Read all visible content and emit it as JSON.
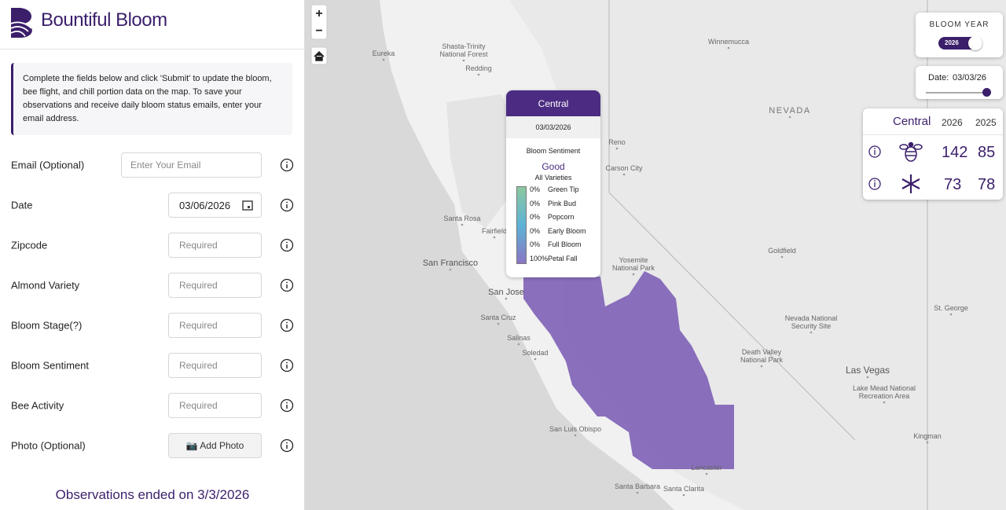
{
  "header": {
    "logo": "Bountiful Bloom"
  },
  "instructions": "Complete the fields below and click 'Submit' to update the bloom, bee flight, and chill portion data on the map. To save your observations and receive daily bloom status emails, enter your email address.",
  "form": {
    "fields": [
      {
        "label": "Email (Optional)",
        "placeholder": "Enter Your Email"
      },
      {
        "label": "Date",
        "value": "03/06/2026"
      },
      {
        "label": "Zipcode",
        "placeholder": "Required"
      },
      {
        "label": "Almond Variety",
        "placeholder": "Required"
      },
      {
        "label": "Bloom Stage(?)",
        "placeholder": "Required"
      },
      {
        "label": "Bloom Sentiment",
        "placeholder": "Required"
      },
      {
        "label": "Bee Activity",
        "placeholder": "Required"
      },
      {
        "label": "Photo (Optional)",
        "button": "📷 Add Photo"
      }
    ]
  },
  "footer": "Observations ended on 3/3/2026",
  "map": {
    "zoom_in": "+",
    "zoom_out": "−",
    "labels": [
      "Eureka",
      "Shasta-Trinity\nNational Forest",
      "Redding",
      "Winnemucca",
      "Reno",
      "Carson City",
      "NEVADA",
      "Santa Rosa",
      "Fairfield",
      "San Francisco",
      "San Jose",
      "Santa Cruz",
      "Salinas",
      "Soledad",
      "Yosemite\nNational Park",
      "Goldfield",
      "Nevada National\nSecurity Site",
      "Death Valley\nNational Park",
      "Las Vegas",
      "Lake Mead National\nRecreation Area",
      "Kingman",
      "San Luis Obispo",
      "Santa Barbara",
      "Lancaster",
      "Santa Clarita",
      "St. George"
    ]
  },
  "bloom_year": {
    "title": "BLOOM YEAR",
    "toggle": "2026"
  },
  "date_slider": {
    "label": "Date:",
    "value": "03/03/26"
  },
  "stats": {
    "region": "Central",
    "years": [
      "2026",
      "2025"
    ],
    "rows": [
      [
        "142",
        "85"
      ],
      [
        "73",
        "78"
      ]
    ]
  },
  "popup": {
    "region": "Central",
    "date": "03/03/2026",
    "sentiment_title": "Bloom Sentiment",
    "sentiment": "Good",
    "varieties": "All Varieties",
    "stages": [
      {
        "percent": "0%",
        "name": "Green Tip"
      },
      {
        "percent": "0%",
        "name": "Pink Bud"
      },
      {
        "percent": "0%",
        "name": "Popcorn"
      },
      {
        "percent": "0%",
        "name": "Early Bloom"
      },
      {
        "percent": "0%",
        "name": "Full Bloom"
      },
      {
        "percent": "100%",
        "name": "Petal Fall"
      }
    ]
  }
}
